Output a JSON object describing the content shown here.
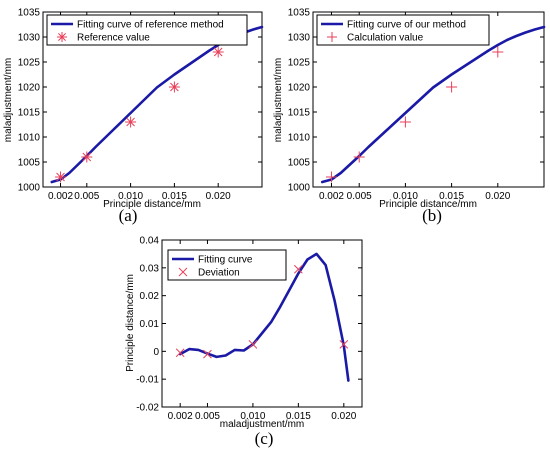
{
  "chart_data": [
    {
      "type": "line",
      "panel_label": "(a)",
      "xlabel": "Principle distance/mm",
      "ylabel": "maladjustment/mm",
      "xlim": [
        0,
        0.025
      ],
      "ylim": [
        1000,
        1035
      ],
      "xticks": [
        0.002,
        0.005,
        0.01,
        0.015,
        0.02
      ],
      "xtick_labels": [
        "0.002",
        "0.005",
        "0.010",
        "0.015",
        "0.020"
      ],
      "yticks": [
        1000,
        1005,
        1010,
        1015,
        1020,
        1025,
        1030,
        1035
      ],
      "ytick_labels": [
        "1000",
        "1005",
        "1010",
        "1015",
        "1020",
        "1025",
        "1030",
        "1035"
      ],
      "legend_position": "top-left",
      "series": [
        {
          "name": "Fitting curve of reference method",
          "kind": "line",
          "color": "#1a1aa6",
          "x": [
            0.001,
            0.002,
            0.003,
            0.004,
            0.005,
            0.006,
            0.007,
            0.008,
            0.009,
            0.01,
            0.011,
            0.012,
            0.013,
            0.014,
            0.015,
            0.016,
            0.017,
            0.018,
            0.019,
            0.02,
            0.021,
            0.022,
            0.023,
            0.024,
            0.025
          ],
          "y": [
            1001.0,
            1001.5,
            1002.8,
            1004.5,
            1006.2,
            1008.0,
            1009.7,
            1011.4,
            1013.1,
            1014.8,
            1016.5,
            1018.2,
            1019.9,
            1021.2,
            1022.5,
            1023.7,
            1024.9,
            1026.1,
            1027.3,
            1028.4,
            1029.4,
            1030.2,
            1030.9,
            1031.5,
            1032.0
          ]
        },
        {
          "name": "Reference value",
          "kind": "marker",
          "marker": "asterisk",
          "color": "#e8405a",
          "x": [
            0.002,
            0.005,
            0.01,
            0.015,
            0.02
          ],
          "y": [
            1002,
            1006,
            1013,
            1020,
            1027
          ]
        }
      ]
    },
    {
      "type": "line",
      "panel_label": "(b)",
      "xlabel": "Principle distance/mm",
      "ylabel": "maladjustment/mm",
      "xlim": [
        0,
        0.025
      ],
      "ylim": [
        1000,
        1035
      ],
      "xticks": [
        0.002,
        0.005,
        0.01,
        0.015,
        0.02
      ],
      "xtick_labels": [
        "0.002",
        "0.005",
        "0.010",
        "0.015",
        "0.020"
      ],
      "yticks": [
        1000,
        1005,
        1010,
        1015,
        1020,
        1025,
        1030,
        1035
      ],
      "ytick_labels": [
        "1000",
        "1005",
        "1010",
        "1015",
        "1020",
        "1025",
        "1030",
        "1035"
      ],
      "legend_position": "top-left",
      "series": [
        {
          "name": "Fitting curve of our method",
          "kind": "line",
          "color": "#1a1aa6",
          "x": [
            0.001,
            0.002,
            0.003,
            0.004,
            0.005,
            0.006,
            0.007,
            0.008,
            0.009,
            0.01,
            0.011,
            0.012,
            0.013,
            0.014,
            0.015,
            0.016,
            0.017,
            0.018,
            0.019,
            0.02,
            0.021,
            0.022,
            0.023,
            0.024,
            0.025
          ],
          "y": [
            1001.0,
            1001.5,
            1002.8,
            1004.5,
            1006.2,
            1008.0,
            1009.7,
            1011.4,
            1013.1,
            1014.8,
            1016.5,
            1018.2,
            1019.9,
            1021.2,
            1022.5,
            1023.7,
            1024.9,
            1026.1,
            1027.3,
            1028.4,
            1029.4,
            1030.2,
            1030.9,
            1031.5,
            1032.0
          ]
        },
        {
          "name": "Calculation value",
          "kind": "marker",
          "marker": "plus",
          "color": "#e8405a",
          "x": [
            0.002,
            0.005,
            0.01,
            0.015,
            0.02
          ],
          "y": [
            1002,
            1006,
            1013,
            1020,
            1027
          ]
        }
      ]
    },
    {
      "type": "line",
      "panel_label": "(c)",
      "xlabel": "maladjustment/mm",
      "ylabel": "Principle distance/mm",
      "xlim": [
        0,
        0.022
      ],
      "ylim": [
        -0.02,
        0.04
      ],
      "xticks": [
        0.002,
        0.005,
        0.01,
        0.015,
        0.02
      ],
      "xtick_labels": [
        "0.002",
        "0.005",
        "0.010",
        "0.015",
        "0.020"
      ],
      "yticks": [
        -0.02,
        -0.01,
        0,
        0.01,
        0.02,
        0.03,
        0.04
      ],
      "ytick_labels": [
        "-0.02",
        "-0.01",
        "0",
        "0.01",
        "0.02",
        "0.03",
        "0.04"
      ],
      "legend_position": "top-left",
      "series": [
        {
          "name": "Fitting curve",
          "kind": "line",
          "color": "#1a1aa6",
          "x": [
            0.002,
            0.003,
            0.004,
            0.005,
            0.006,
            0.007,
            0.008,
            0.009,
            0.01,
            0.011,
            0.012,
            0.013,
            0.014,
            0.015,
            0.016,
            0.017,
            0.018,
            0.019,
            0.02,
            0.0205
          ],
          "y": [
            -0.001,
            0.0008,
            0.0005,
            -0.0008,
            -0.002,
            -0.0015,
            0.0005,
            0.0003,
            0.0025,
            0.0065,
            0.0105,
            0.016,
            0.022,
            0.028,
            0.033,
            0.035,
            0.031,
            0.018,
            0.002,
            -0.0105
          ]
        },
        {
          "name": "Deviation",
          "kind": "marker",
          "marker": "x",
          "color": "#e8405a",
          "x": [
            0.002,
            0.005,
            0.01,
            0.015,
            0.02
          ],
          "y": [
            -0.0005,
            -0.001,
            0.0025,
            0.0295,
            0.0025
          ]
        }
      ]
    }
  ]
}
